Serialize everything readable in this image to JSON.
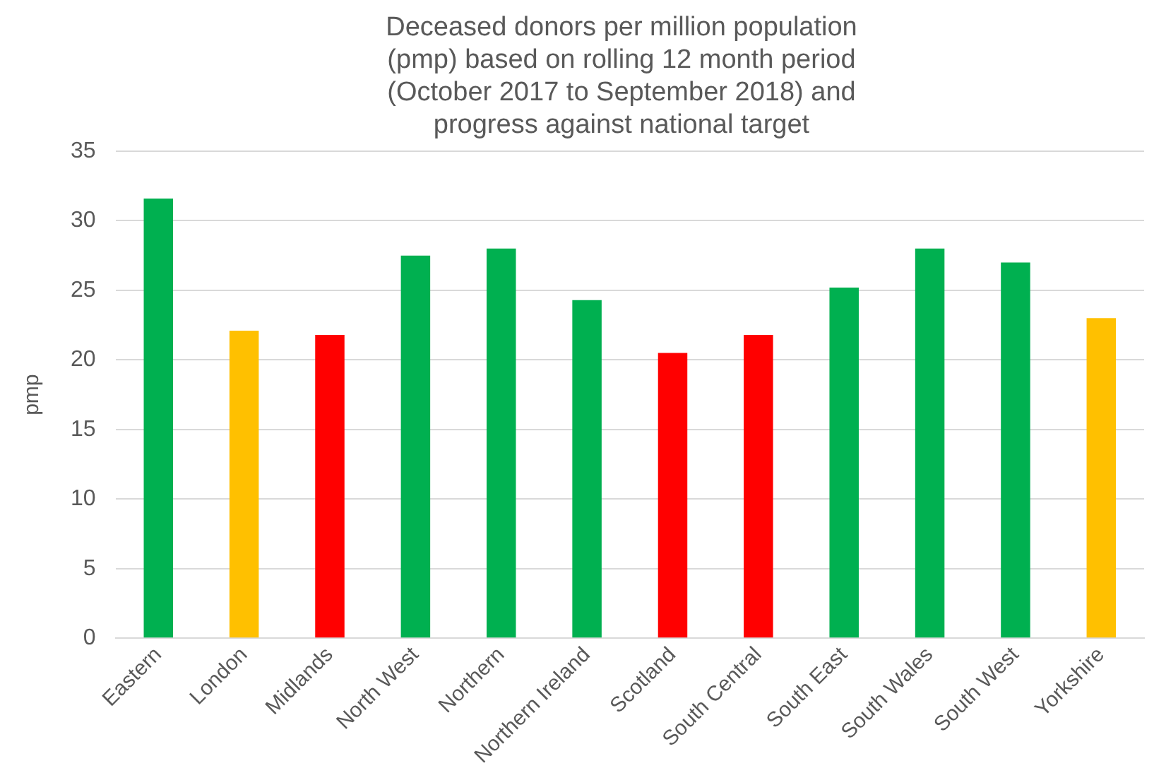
{
  "chart_data": {
    "type": "bar",
    "title": "Deceased donors per million population (pmp) based on rolling 12 month period (October 2017 to September 2018) and progress against national target",
    "ylabel": "pmp",
    "categories": [
      "Eastern",
      "London",
      "Midlands",
      "North West",
      "Northern",
      "Northern Ireland",
      "Scotland",
      "South Central",
      "South East",
      "South Wales",
      "South West",
      "Yorkshire"
    ],
    "values": [
      31.6,
      22.1,
      21.8,
      27.5,
      28.0,
      24.3,
      20.5,
      21.8,
      25.2,
      28.0,
      27.0,
      23.0
    ],
    "colors": [
      "#00b050",
      "#ffc000",
      "#ff0000",
      "#00b050",
      "#00b050",
      "#00b050",
      "#ff0000",
      "#ff0000",
      "#00b050",
      "#00b050",
      "#00b050",
      "#ffc000"
    ],
    "ylim": [
      0,
      35
    ],
    "yticks": [
      0,
      5,
      10,
      15,
      20,
      25,
      30,
      35
    ],
    "grid": "y",
    "legend": false
  }
}
